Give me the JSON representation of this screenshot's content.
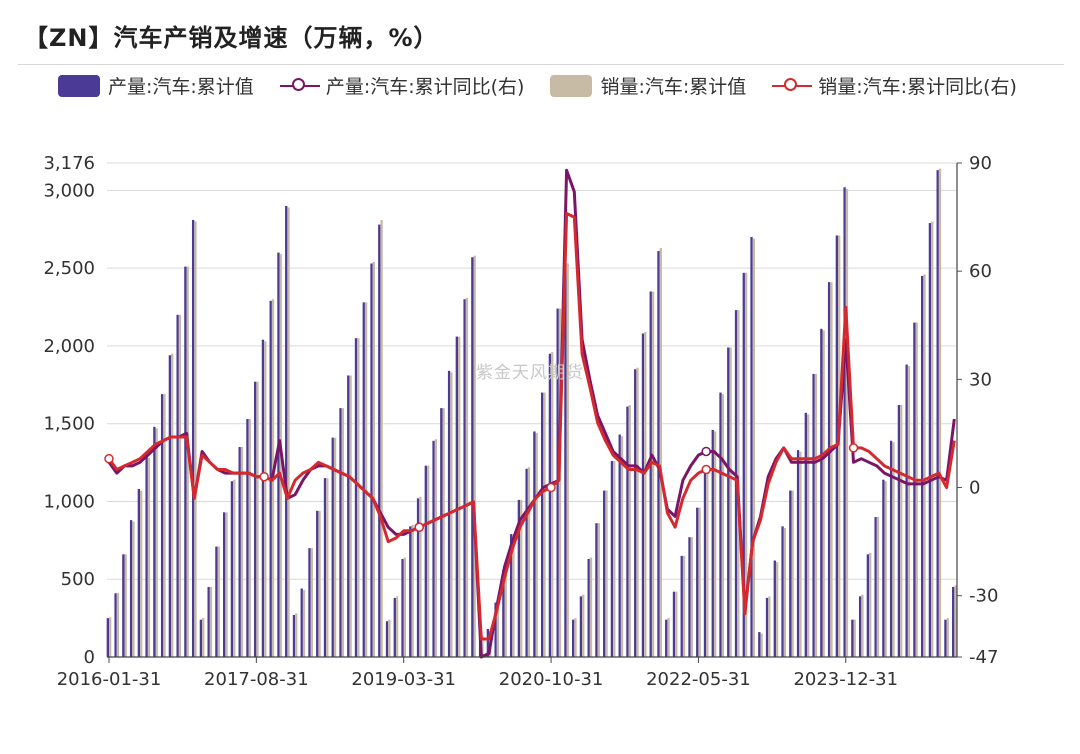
{
  "header": {
    "title": "【ZN】汽车产销及增速（万辆，%）"
  },
  "watermark": "紫金天风期货",
  "legend": [
    {
      "label": "产量:汽车:累计值",
      "kind": "bar",
      "color": "#4b3a96"
    },
    {
      "label": "产量:汽车:累计同比(右)",
      "kind": "line",
      "color": "#7b1567"
    },
    {
      "label": "销量:汽车:累计值",
      "kind": "bar",
      "color": "#c8bba6"
    },
    {
      "label": "销量:汽车:累计同比(右)",
      "kind": "line",
      "color": "#d42a2f"
    }
  ],
  "chart_data": {
    "type": "bar",
    "start_month": "2016-01",
    "x_tick_labels": [
      "2016-01-31",
      "2017-08-31",
      "2019-03-31",
      "2020-10-31",
      "2022-05-31",
      "2023-12-31"
    ],
    "y_left": {
      "min": 0,
      "max": 3176,
      "ticks": [
        0,
        500,
        1000,
        1500,
        2000,
        2500,
        3000,
        3176
      ]
    },
    "y_right": {
      "min": -47,
      "max": 90,
      "ticks": [
        -47,
        -30,
        0,
        30,
        60,
        90
      ]
    },
    "grid": true,
    "legend_position": "top",
    "series": [
      {
        "name": "产量:汽车:累计值",
        "type": "bar",
        "axis": "left",
        "color": "#4b3a96",
        "values": [
          250,
          410,
          660,
          880,
          1080,
          1290,
          1480,
          1690,
          1940,
          2200,
          2510,
          2810,
          240,
          450,
          710,
          930,
          1130,
          1350,
          1530,
          1770,
          2040,
          2290,
          2600,
          2900,
          270,
          440,
          700,
          940,
          1150,
          1410,
          1600,
          1810,
          2050,
          2280,
          2530,
          2780,
          230,
          380,
          630,
          840,
          1020,
          1230,
          1390,
          1600,
          1840,
          2060,
          2300,
          2570,
          150,
          180,
          350,
          560,
          790,
          1010,
          1210,
          1450,
          1700,
          1950,
          2240,
          2520,
          240,
          390,
          630,
          860,
          1070,
          1260,
          1430,
          1610,
          1850,
          2080,
          2350,
          2610,
          240,
          420,
          650,
          770,
          960,
          1210,
          1460,
          1700,
          1990,
          2230,
          2470,
          2700,
          160,
          380,
          620,
          840,
          1070,
          1330,
          1570,
          1820,
          2110,
          2410,
          2710,
          3020,
          240,
          390,
          660,
          900,
          1140,
          1390,
          1620,
          1880,
          2150,
          2450,
          2790,
          3130,
          240,
          450
        ]
      },
      {
        "name": "销量:汽车:累计值",
        "type": "bar",
        "axis": "left",
        "color": "#c8bba6",
        "values": [
          255,
          410,
          660,
          870,
          1070,
          1280,
          1470,
          1690,
          1950,
          2200,
          2510,
          2800,
          250,
          450,
          710,
          930,
          1140,
          1350,
          1530,
          1770,
          2030,
          2300,
          2590,
          2890,
          280,
          430,
          700,
          940,
          1150,
          1410,
          1600,
          1810,
          2050,
          2280,
          2540,
          2810,
          240,
          390,
          640,
          850,
          1030,
          1230,
          1400,
          1600,
          1830,
          2060,
          2310,
          2580,
          140,
          170,
          360,
          570,
          790,
          1010,
          1220,
          1440,
          1700,
          1960,
          2240,
          2530,
          250,
          400,
          640,
          860,
          1070,
          1260,
          1420,
          1620,
          1860,
          2090,
          2350,
          2630,
          250,
          420,
          650,
          770,
          960,
          1200,
          1450,
          1690,
          1990,
          2230,
          2470,
          2690,
          150,
          390,
          610,
          830,
          1070,
          1320,
          1560,
          1820,
          2100,
          2410,
          2710,
          3010,
          240,
          400,
          670,
          900,
          1130,
          1380,
          1620,
          1870,
          2150,
          2460,
          2800,
          3140,
          250,
          460
        ]
      },
      {
        "name": "产量:汽车:累计同比(右)",
        "type": "line",
        "axis": "right",
        "color": "#7b1567",
        "values": [
          7,
          4,
          6,
          6,
          7,
          9,
          11,
          13,
          14,
          14,
          15,
          -3,
          10,
          7,
          5,
          4,
          4,
          4,
          4,
          3,
          3,
          2,
          13,
          -3,
          -2,
          2,
          5,
          6,
          6,
          5,
          4,
          3,
          1,
          -1,
          -3,
          -7,
          -11,
          -13,
          -13,
          -12,
          -11,
          -10,
          -9,
          -8,
          -7,
          -6,
          -5,
          -4,
          -47,
          -46,
          -33,
          -22,
          -15,
          -9,
          -6,
          -3,
          0,
          1,
          2,
          88,
          82,
          41,
          30,
          20,
          15,
          10,
          8,
          6,
          6,
          4,
          9,
          5,
          -6,
          -8,
          2,
          6,
          9,
          10,
          10,
          8,
          5,
          3,
          -34,
          -15,
          -8,
          3,
          8,
          11,
          7,
          7,
          7,
          7,
          8,
          10,
          12,
          41,
          7,
          8,
          7,
          6,
          4,
          3,
          2,
          1,
          1,
          1,
          2,
          3,
          2,
          19
        ]
      },
      {
        "name": "销量:汽车:累计同比(右)",
        "type": "line",
        "axis": "right",
        "color": "#d42a2f",
        "values": [
          8,
          5,
          6,
          7,
          8,
          10,
          12,
          13,
          14,
          14,
          14,
          -3,
          9,
          7,
          5,
          5,
          4,
          4,
          4,
          3,
          3,
          2,
          4,
          -3,
          2,
          4,
          5,
          7,
          6,
          5,
          4,
          3,
          1,
          -1,
          -3,
          -8,
          -15,
          -14,
          -12,
          -12,
          -11,
          -10,
          -9,
          -8,
          -7,
          -6,
          -5,
          -4,
          -42,
          -42,
          -34,
          -25,
          -17,
          -11,
          -7,
          -3,
          -1,
          0,
          2,
          76,
          75,
          37,
          28,
          18,
          13,
          9,
          7,
          5,
          5,
          4,
          7,
          6,
          -7,
          -11,
          -3,
          2,
          4,
          5,
          5,
          4,
          3,
          2,
          -35,
          -15,
          -9,
          1,
          7,
          11,
          8,
          8,
          8,
          8,
          9,
          11,
          12,
          50,
          11,
          11,
          10,
          8,
          6,
          5,
          4,
          3,
          2,
          2,
          3,
          4,
          0,
          13
        ]
      }
    ],
    "markers": [
      {
        "series": 1,
        "index": 40
      },
      {
        "series": 1,
        "index": 77
      },
      {
        "series": 3,
        "index": 0
      },
      {
        "series": 3,
        "index": 20
      },
      {
        "series": 3,
        "index": 40
      },
      {
        "series": 3,
        "index": 57
      },
      {
        "series": 3,
        "index": 77
      },
      {
        "series": 3,
        "index": 96
      }
    ]
  }
}
